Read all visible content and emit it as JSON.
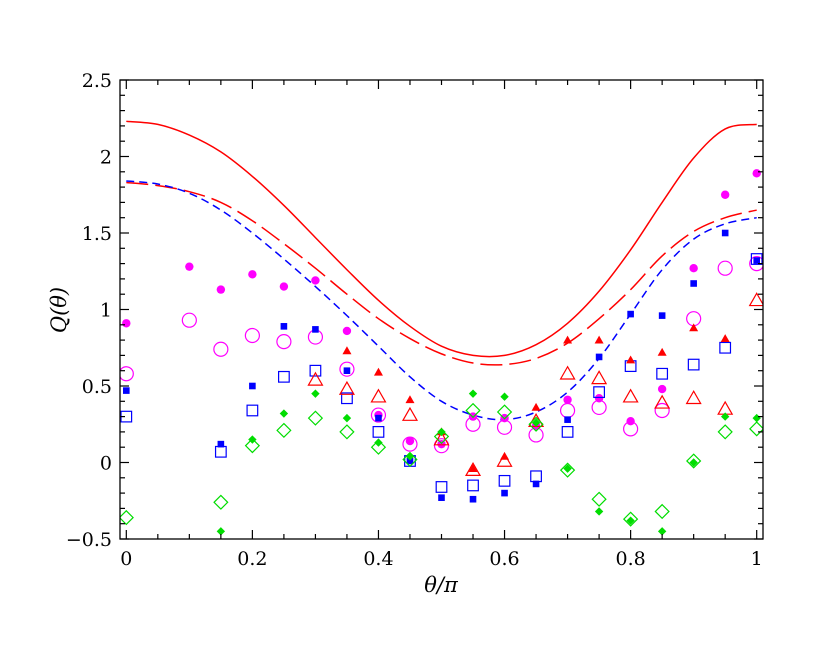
{
  "chart_data": {
    "type": "scatter",
    "title": "",
    "xlabel": "θ/π",
    "ylabel": "Q(θ)",
    "xlim": [
      -0.01,
      1.01
    ],
    "ylim": [
      -0.5,
      2.5
    ],
    "xticks": [
      {
        "value": 0,
        "label": "0"
      },
      {
        "value": 0.2,
        "label": "0.2"
      },
      {
        "value": 0.4,
        "label": "0.4"
      },
      {
        "value": 0.6,
        "label": "0.6"
      },
      {
        "value": 0.8,
        "label": "0.8"
      },
      {
        "value": 1,
        "label": "1"
      }
    ],
    "yticks": [
      {
        "value": -0.5,
        "label": "−0.5"
      },
      {
        "value": 0,
        "label": "0"
      },
      {
        "value": 0.5,
        "label": "0.5"
      },
      {
        "value": 1,
        "label": "1"
      },
      {
        "value": 1.5,
        "label": "1.5"
      },
      {
        "value": 2,
        "label": "2"
      },
      {
        "value": 2.5,
        "label": "2.5"
      }
    ],
    "grid": false,
    "legend": "none",
    "curves": [
      {
        "style": "solid",
        "color": "#ff0000",
        "x": [
          0,
          0.05,
          0.1,
          0.15,
          0.2,
          0.25,
          0.3,
          0.35,
          0.4,
          0.45,
          0.5,
          0.55,
          0.6,
          0.65,
          0.7,
          0.75,
          0.8,
          0.85,
          0.9,
          0.95,
          1.0
        ],
        "y": [
          2.23,
          2.21,
          2.14,
          2.03,
          1.87,
          1.68,
          1.47,
          1.26,
          1.06,
          0.89,
          0.76,
          0.7,
          0.7,
          0.77,
          0.91,
          1.12,
          1.39,
          1.7,
          1.99,
          2.18,
          2.21
        ]
      },
      {
        "style": "long-dash",
        "color": "#ff0000",
        "x": [
          0,
          0.05,
          0.1,
          0.15,
          0.2,
          0.25,
          0.3,
          0.35,
          0.4,
          0.45,
          0.5,
          0.55,
          0.6,
          0.65,
          0.7,
          0.75,
          0.8,
          0.85,
          0.9,
          0.95,
          1.0
        ],
        "y": [
          1.83,
          1.81,
          1.77,
          1.7,
          1.58,
          1.43,
          1.27,
          1.1,
          0.94,
          0.81,
          0.71,
          0.65,
          0.64,
          0.68,
          0.78,
          0.94,
          1.13,
          1.35,
          1.51,
          1.6,
          1.65
        ]
      },
      {
        "style": "short-dash",
        "color": "#0000ff",
        "x": [
          0,
          0.05,
          0.1,
          0.15,
          0.2,
          0.25,
          0.3,
          0.35,
          0.4,
          0.45,
          0.5,
          0.55,
          0.6,
          0.65,
          0.7,
          0.75,
          0.8,
          0.85,
          0.9,
          0.95,
          1.0
        ],
        "y": [
          1.84,
          1.82,
          1.76,
          1.65,
          1.5,
          1.33,
          1.15,
          0.96,
          0.76,
          0.56,
          0.4,
          0.31,
          0.28,
          0.33,
          0.46,
          0.68,
          0.97,
          1.26,
          1.46,
          1.56,
          1.6
        ]
      }
    ],
    "series": [
      {
        "marker": "filled-circle",
        "color": "#ff00ff",
        "x": [
          0,
          0.1,
          0.15,
          0.2,
          0.25,
          0.3,
          0.35,
          0.4,
          0.45,
          0.5,
          0.55,
          0.6,
          0.65,
          0.7,
          0.75,
          0.8,
          0.85,
          0.9,
          0.95,
          1.0
        ],
        "y": [
          0.91,
          1.28,
          1.13,
          1.23,
          1.15,
          1.19,
          0.86,
          0.31,
          0.14,
          0.12,
          0.3,
          0.29,
          0.24,
          0.41,
          0.42,
          0.27,
          0.48,
          1.27,
          1.75,
          1.89
        ]
      },
      {
        "marker": "open-circle",
        "color": "#ff00ff",
        "x": [
          0,
          0.1,
          0.15,
          0.2,
          0.25,
          0.3,
          0.35,
          0.4,
          0.45,
          0.5,
          0.55,
          0.6,
          0.65,
          0.7,
          0.75,
          0.8,
          0.85,
          0.9,
          0.95,
          1.0
        ],
        "y": [
          0.58,
          0.93,
          0.74,
          0.83,
          0.79,
          0.82,
          0.61,
          0.31,
          0.12,
          0.11,
          0.25,
          0.23,
          0.18,
          0.34,
          0.36,
          0.22,
          0.34,
          0.94,
          1.27,
          1.3
        ]
      },
      {
        "marker": "filled-square",
        "color": "#0000ff",
        "x": [
          0,
          0.15,
          0.2,
          0.25,
          0.3,
          0.35,
          0.4,
          0.45,
          0.5,
          0.55,
          0.6,
          0.65,
          0.7,
          0.75,
          0.8,
          0.85,
          0.9,
          0.95,
          1.0
        ],
        "y": [
          0.47,
          0.12,
          0.5,
          0.89,
          0.87,
          0.6,
          0.29,
          0.01,
          -0.23,
          -0.24,
          -0.2,
          -0.14,
          0.28,
          0.69,
          0.97,
          0.96,
          1.17,
          1.5,
          1.32
        ]
      },
      {
        "marker": "open-square",
        "color": "#0000ff",
        "x": [
          0,
          0.15,
          0.2,
          0.25,
          0.3,
          0.35,
          0.4,
          0.45,
          0.5,
          0.55,
          0.6,
          0.65,
          0.7,
          0.75,
          0.8,
          0.85,
          0.9,
          0.95,
          1.0
        ],
        "y": [
          0.3,
          0.07,
          0.34,
          0.56,
          0.6,
          0.42,
          0.2,
          0.01,
          -0.16,
          -0.15,
          -0.12,
          -0.09,
          0.2,
          0.46,
          0.63,
          0.58,
          0.64,
          0.75,
          1.33
        ]
      },
      {
        "marker": "filled-triangle",
        "color": "#ff0000",
        "x": [
          0.35,
          0.4,
          0.45,
          0.5,
          0.55,
          0.6,
          0.65,
          0.7,
          0.75,
          0.8,
          0.85,
          0.9,
          0.95
        ],
        "y": [
          0.73,
          0.59,
          0.41,
          0.2,
          -0.04,
          0.04,
          0.36,
          0.8,
          0.8,
          0.67,
          0.72,
          0.88,
          0.81
        ]
      },
      {
        "marker": "open-triangle",
        "color": "#ff0000",
        "x": [
          0.3,
          0.35,
          0.4,
          0.45,
          0.5,
          0.55,
          0.6,
          0.65,
          0.7,
          0.75,
          0.8,
          0.85,
          0.9,
          0.95,
          1.0
        ],
        "y": [
          0.54,
          0.48,
          0.43,
          0.31,
          0.15,
          -0.05,
          0.01,
          0.27,
          0.58,
          0.55,
          0.43,
          0.39,
          0.42,
          0.35,
          1.06
        ]
      },
      {
        "marker": "filled-diamond",
        "color": "#00dd00",
        "x": [
          0.15,
          0.2,
          0.25,
          0.3,
          0.35,
          0.4,
          0.45,
          0.5,
          0.55,
          0.6,
          0.65,
          0.7,
          0.75,
          0.8,
          0.85,
          0.9,
          0.95,
          1.0
        ],
        "y": [
          -0.45,
          0.15,
          0.32,
          0.45,
          0.29,
          0.13,
          0.04,
          0.2,
          0.45,
          0.43,
          0.26,
          -0.04,
          -0.32,
          -0.38,
          -0.45,
          0.0,
          0.3,
          0.29
        ]
      },
      {
        "marker": "open-diamond",
        "color": "#00dd00",
        "x": [
          0,
          0.15,
          0.2,
          0.25,
          0.3,
          0.35,
          0.4,
          0.45,
          0.5,
          0.55,
          0.6,
          0.65,
          0.7,
          0.75,
          0.8,
          0.85,
          0.9,
          0.95,
          1.0
        ],
        "y": [
          -0.36,
          -0.26,
          0.11,
          0.21,
          0.29,
          0.2,
          0.1,
          0.02,
          0.17,
          0.34,
          0.33,
          0.25,
          -0.05,
          -0.24,
          -0.37,
          -0.32,
          0.01,
          0.2,
          0.22
        ]
      }
    ]
  }
}
